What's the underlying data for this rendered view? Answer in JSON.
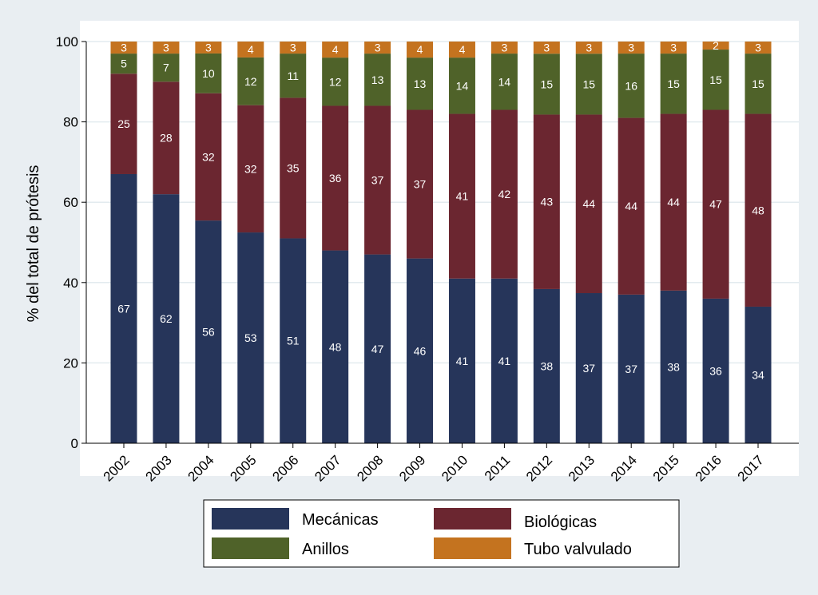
{
  "chart_data": {
    "type": "bar",
    "stacked": true,
    "title": "",
    "xlabel": "",
    "ylabel": "% del total de prótesis",
    "ylim": [
      0,
      100
    ],
    "yticks": [
      0,
      20,
      40,
      60,
      80,
      100
    ],
    "grid": true,
    "legend_position": "bottom",
    "categories": [
      "2002",
      "2003",
      "2004",
      "2005",
      "2006",
      "2007",
      "2008",
      "2009",
      "2010",
      "2011",
      "2012",
      "2013",
      "2014",
      "2015",
      "2016",
      "2017"
    ],
    "series": [
      {
        "name": "Mecánicas",
        "color": "#26355a",
        "values": [
          67,
          62,
          56,
          53,
          51,
          48,
          47,
          46,
          41,
          41,
          38,
          37,
          37,
          38,
          36,
          34
        ]
      },
      {
        "name": "Biológicas",
        "color": "#6b2630",
        "values": [
          25,
          28,
          32,
          32,
          35,
          36,
          37,
          37,
          41,
          42,
          43,
          44,
          44,
          44,
          47,
          48
        ]
      },
      {
        "name": "Anillos",
        "color": "#4f6229",
        "values": [
          5,
          7,
          10,
          12,
          11,
          12,
          13,
          13,
          14,
          14,
          15,
          15,
          16,
          15,
          15,
          15
        ]
      },
      {
        "name": "Tubo valvulado",
        "color": "#c4731f",
        "values": [
          3,
          3,
          3,
          4,
          3,
          4,
          3,
          4,
          4,
          3,
          3,
          3,
          3,
          3,
          2,
          3
        ]
      }
    ]
  }
}
